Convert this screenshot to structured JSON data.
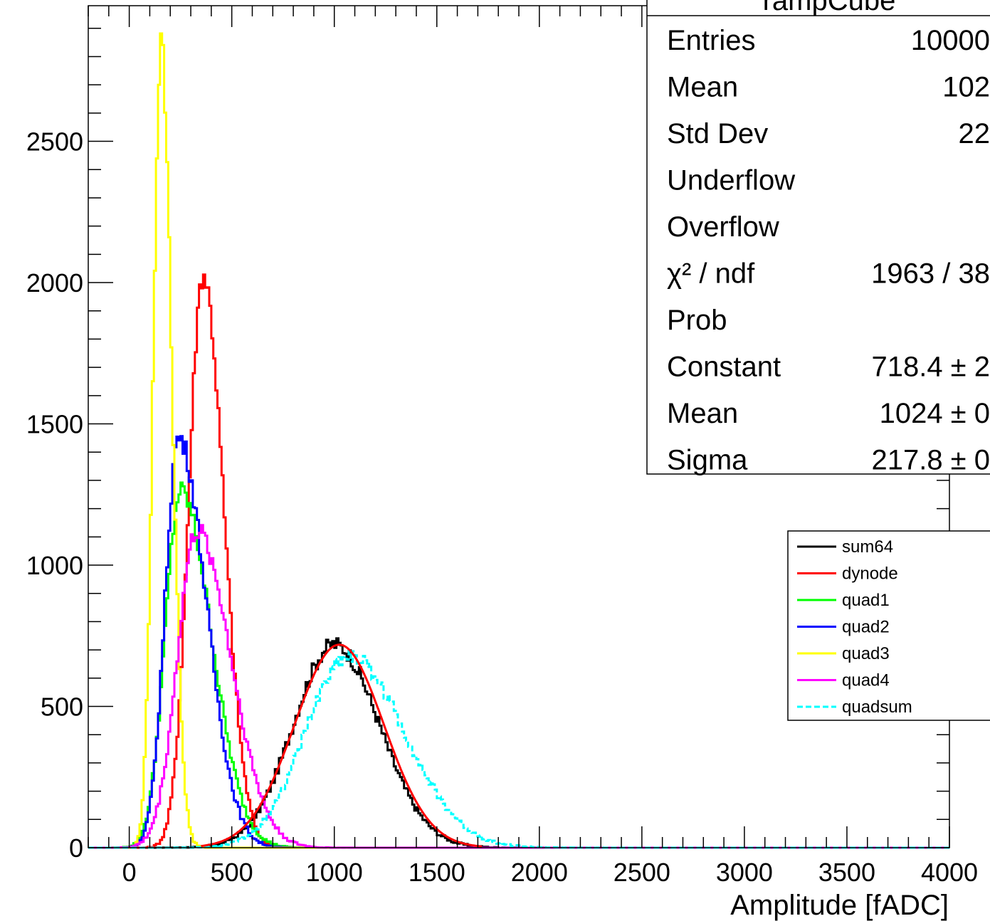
{
  "chart_data": {
    "type": "line",
    "xlabel": "Amplitude [fADC]",
    "ylabel": "",
    "xlim": [
      -200,
      4000
    ],
    "ylim": [
      0,
      2980
    ],
    "grid": false,
    "x_ticks": [
      0,
      500,
      1000,
      1500,
      2000,
      2500,
      3000,
      3500,
      4000
    ],
    "y_ticks": [
      0,
      500,
      1000,
      1500,
      2000,
      2500
    ],
    "legend_position": "right",
    "stats_box": {
      "title": "rampCube",
      "rows": [
        {
          "label": "Entries",
          "value": "10000"
        },
        {
          "label": "Mean",
          "value": "102"
        },
        {
          "label": "Std Dev",
          "value": "22"
        },
        {
          "label": "Underflow",
          "value": ""
        },
        {
          "label": "Overflow",
          "value": ""
        },
        {
          "label": "χ² / ndf",
          "value": "1963 / 38"
        },
        {
          "label": "Prob",
          "value": ""
        },
        {
          "label": "Constant",
          "value": "718.4 ± 2"
        },
        {
          "label": "Mean",
          "value": "1024 ± 0"
        },
        {
          "label": "Sigma",
          "value": "217.8 ± 0"
        }
      ]
    },
    "series": [
      {
        "name": "sum64",
        "color": "#000000",
        "style": "solid",
        "shape": "gauss",
        "peak": 720,
        "mean": 1000,
        "sigma_left": 200,
        "sigma_right": 220
      },
      {
        "name": "dynode",
        "color": "#ff0000",
        "style": "solid",
        "shape": "gauss",
        "peak": 2030,
        "mean": 360,
        "sigma_left": 70,
        "sigma_right": 100
      },
      {
        "name": "quad1",
        "color": "#00ff00",
        "style": "solid",
        "shape": "gauss",
        "peak": 1260,
        "mean": 250,
        "sigma_left": 75,
        "sigma_right": 150
      },
      {
        "name": "quad2",
        "color": "#0000ff",
        "style": "solid",
        "shape": "gauss",
        "peak": 1450,
        "mean": 240,
        "sigma_left": 65,
        "sigma_right": 135
      },
      {
        "name": "quad3",
        "color": "#ffff00",
        "style": "solid",
        "shape": "gauss",
        "peak": 2850,
        "mean": 155,
        "sigma_left": 38,
        "sigma_right": 52
      },
      {
        "name": "quad4",
        "color": "#ff00ff",
        "style": "solid",
        "shape": "gauss",
        "peak": 1120,
        "mean": 330,
        "sigma_left": 95,
        "sigma_right": 165
      },
      {
        "name": "quadsum",
        "color": "#00ffff",
        "style": "dashed",
        "shape": "gauss",
        "peak": 680,
        "mean": 1070,
        "sigma_left": 210,
        "sigma_right": 270
      }
    ],
    "fit": {
      "name": "gaus",
      "color": "#ff0000",
      "constant": 718.4,
      "mean": 1024,
      "sigma": 217.8
    }
  }
}
